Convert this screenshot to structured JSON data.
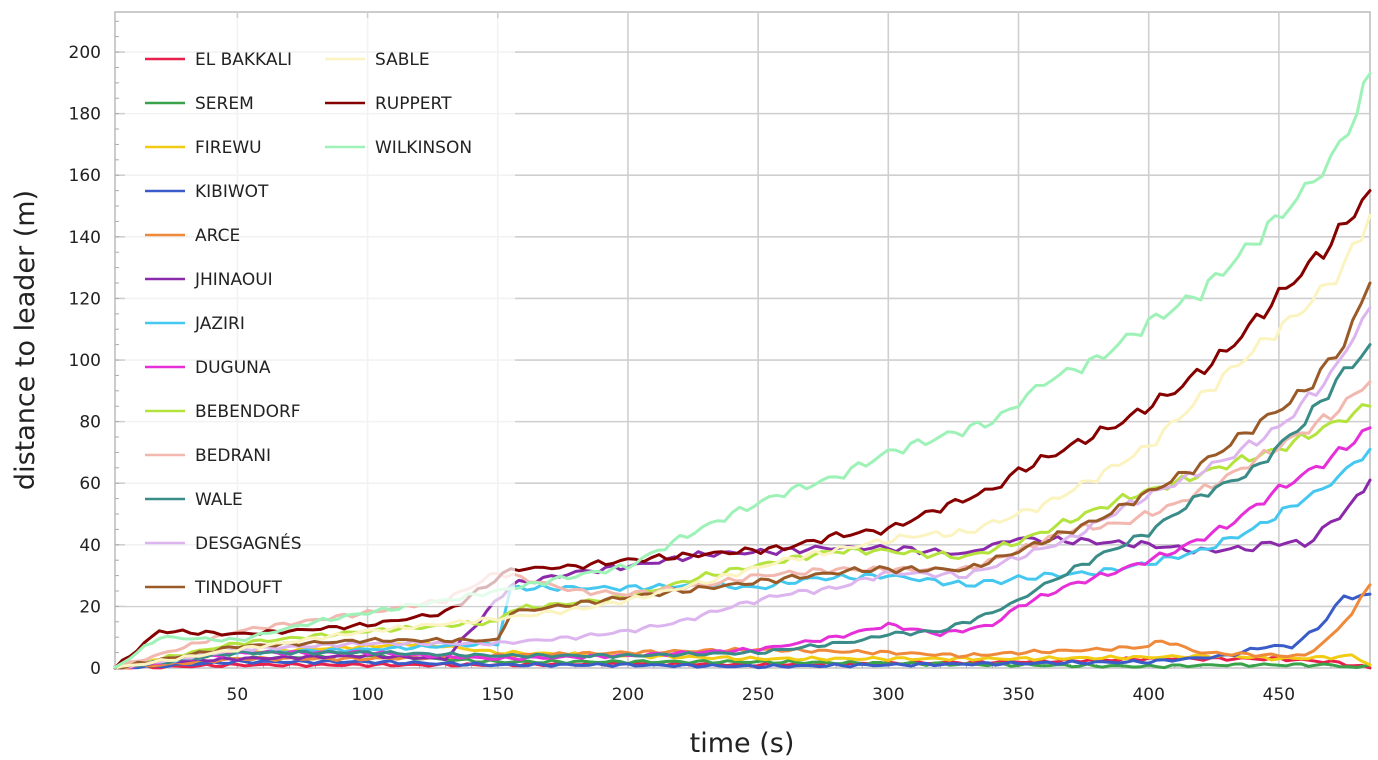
{
  "chart_data": {
    "type": "line",
    "title": "",
    "xlabel": "time (s)",
    "ylabel": "distance to leader (m)",
    "xlim": [
      3,
      485
    ],
    "ylim": [
      0,
      213
    ],
    "x_ticks": [
      50,
      100,
      150,
      200,
      250,
      300,
      350,
      400,
      450
    ],
    "y_ticks": [
      0,
      20,
      40,
      60,
      80,
      100,
      120,
      140,
      160,
      180,
      200
    ],
    "grid": true,
    "legend_position": "top-left",
    "series": [
      {
        "name": "EL BAKKALI",
        "color": "#e8204c",
        "points": [
          [
            3,
            0
          ],
          [
            50,
            1
          ],
          [
            100,
            1
          ],
          [
            150,
            1
          ],
          [
            200,
            1.5
          ],
          [
            250,
            1
          ],
          [
            300,
            1.5
          ],
          [
            350,
            2
          ],
          [
            380,
            2.5
          ],
          [
            400,
            3
          ],
          [
            430,
            3
          ],
          [
            450,
            3
          ],
          [
            470,
            2
          ],
          [
            485,
            0
          ]
        ]
      },
      {
        "name": "SEREM",
        "color": "#3aa24a",
        "points": [
          [
            3,
            0
          ],
          [
            50,
            3
          ],
          [
            100,
            4
          ],
          [
            150,
            2
          ],
          [
            200,
            2
          ],
          [
            250,
            2
          ],
          [
            300,
            1.5
          ],
          [
            350,
            1
          ],
          [
            400,
            0.5
          ],
          [
            430,
            1
          ],
          [
            450,
            1
          ],
          [
            470,
            1
          ],
          [
            480,
            0
          ],
          [
            485,
            1
          ]
        ]
      },
      {
        "name": "FIREWU",
        "color": "#f2cb13",
        "points": [
          [
            3,
            1
          ],
          [
            50,
            5
          ],
          [
            100,
            7
          ],
          [
            120,
            8
          ],
          [
            150,
            5
          ],
          [
            200,
            4
          ],
          [
            250,
            3
          ],
          [
            300,
            3
          ],
          [
            350,
            3
          ],
          [
            400,
            3.5
          ],
          [
            430,
            4
          ],
          [
            450,
            3
          ],
          [
            470,
            3.5
          ],
          [
            478,
            4
          ],
          [
            485,
            1
          ]
        ]
      },
      {
        "name": "KIBIWOT",
        "color": "#3a5cc8",
        "points": [
          [
            3,
            0
          ],
          [
            50,
            2
          ],
          [
            100,
            2
          ],
          [
            150,
            1
          ],
          [
            200,
            1
          ],
          [
            250,
            0.5
          ],
          [
            300,
            1
          ],
          [
            350,
            1.5
          ],
          [
            400,
            2
          ],
          [
            430,
            4
          ],
          [
            445,
            7
          ],
          [
            455,
            7
          ],
          [
            465,
            13
          ],
          [
            475,
            23
          ],
          [
            485,
            24
          ]
        ]
      },
      {
        "name": "ARCE",
        "color": "#ef8a3a",
        "points": [
          [
            3,
            0
          ],
          [
            50,
            3
          ],
          [
            100,
            3
          ],
          [
            150,
            4
          ],
          [
            200,
            5
          ],
          [
            250,
            6
          ],
          [
            300,
            5
          ],
          [
            330,
            4
          ],
          [
            350,
            5
          ],
          [
            380,
            6
          ],
          [
            400,
            7
          ],
          [
            405,
            9
          ],
          [
            420,
            5
          ],
          [
            450,
            4
          ],
          [
            460,
            4
          ],
          [
            470,
            10
          ],
          [
            478,
            18
          ],
          [
            485,
            27
          ]
        ]
      },
      {
        "name": "JHINAOUI",
        "color": "#8a2aaa",
        "points": [
          [
            3,
            0
          ],
          [
            20,
            2
          ],
          [
            50,
            3
          ],
          [
            100,
            4
          ],
          [
            130,
            3
          ],
          [
            155,
            27
          ],
          [
            180,
            31
          ],
          [
            200,
            33
          ],
          [
            230,
            37
          ],
          [
            260,
            38
          ],
          [
            275,
            39
          ],
          [
            300,
            39
          ],
          [
            330,
            37
          ],
          [
            340,
            40
          ],
          [
            350,
            42
          ],
          [
            380,
            41
          ],
          [
            400,
            40
          ],
          [
            420,
            38
          ],
          [
            440,
            39
          ],
          [
            450,
            41
          ],
          [
            460,
            40
          ],
          [
            470,
            47
          ],
          [
            480,
            55
          ],
          [
            485,
            61
          ]
        ]
      },
      {
        "name": "JAZIRI",
        "color": "#45c8ef",
        "points": [
          [
            3,
            0
          ],
          [
            50,
            5
          ],
          [
            100,
            6
          ],
          [
            150,
            8
          ],
          [
            155,
            26
          ],
          [
            200,
            26
          ],
          [
            230,
            27
          ],
          [
            250,
            26
          ],
          [
            270,
            29
          ],
          [
            300,
            30
          ],
          [
            330,
            27
          ],
          [
            340,
            28
          ],
          [
            350,
            29
          ],
          [
            360,
            30
          ],
          [
            380,
            31
          ],
          [
            400,
            34
          ],
          [
            420,
            38
          ],
          [
            440,
            45
          ],
          [
            460,
            55
          ],
          [
            470,
            60
          ],
          [
            485,
            71
          ]
        ]
      },
      {
        "name": "DUGUNA",
        "color": "#e62fd8",
        "points": [
          [
            3,
            0
          ],
          [
            50,
            5
          ],
          [
            100,
            5
          ],
          [
            150,
            3
          ],
          [
            200,
            4
          ],
          [
            250,
            6
          ],
          [
            280,
            10
          ],
          [
            300,
            14
          ],
          [
            320,
            11
          ],
          [
            340,
            14
          ],
          [
            350,
            20
          ],
          [
            370,
            27
          ],
          [
            390,
            32
          ],
          [
            410,
            38
          ],
          [
            430,
            46
          ],
          [
            450,
            58
          ],
          [
            470,
            68
          ],
          [
            485,
            78
          ]
        ]
      },
      {
        "name": "BEBENDORF",
        "color": "#b4e33d",
        "points": [
          [
            3,
            0
          ],
          [
            50,
            8
          ],
          [
            100,
            12
          ],
          [
            150,
            15
          ],
          [
            155,
            19
          ],
          [
            200,
            23
          ],
          [
            230,
            30
          ],
          [
            260,
            35
          ],
          [
            280,
            38
          ],
          [
            300,
            38
          ],
          [
            330,
            36
          ],
          [
            350,
            41
          ],
          [
            370,
            48
          ],
          [
            390,
            55
          ],
          [
            410,
            60
          ],
          [
            430,
            66
          ],
          [
            450,
            71
          ],
          [
            470,
            79
          ],
          [
            485,
            85
          ]
        ]
      },
      {
        "name": "BEDRANI",
        "color": "#f2b8b0",
        "points": [
          [
            3,
            0
          ],
          [
            50,
            12
          ],
          [
            100,
            18
          ],
          [
            130,
            22
          ],
          [
            150,
            31
          ],
          [
            180,
            25
          ],
          [
            200,
            24
          ],
          [
            230,
            27
          ],
          [
            250,
            30
          ],
          [
            280,
            32
          ],
          [
            300,
            32
          ],
          [
            330,
            32
          ],
          [
            350,
            38
          ],
          [
            370,
            45
          ],
          [
            390,
            47
          ],
          [
            410,
            53
          ],
          [
            430,
            62
          ],
          [
            450,
            72
          ],
          [
            470,
            82
          ],
          [
            485,
            93
          ]
        ]
      },
      {
        "name": "WALE",
        "color": "#3a8c88",
        "points": [
          [
            3,
            0
          ],
          [
            50,
            5
          ],
          [
            100,
            5
          ],
          [
            150,
            4
          ],
          [
            200,
            4
          ],
          [
            250,
            5
          ],
          [
            270,
            7
          ],
          [
            290,
            9
          ],
          [
            300,
            11
          ],
          [
            320,
            12
          ],
          [
            340,
            18
          ],
          [
            350,
            22
          ],
          [
            360,
            27
          ],
          [
            380,
            36
          ],
          [
            400,
            44
          ],
          [
            420,
            56
          ],
          [
            440,
            64
          ],
          [
            460,
            80
          ],
          [
            475,
            96
          ],
          [
            485,
            105
          ]
        ]
      },
      {
        "name": "DESGAGNÉS",
        "color": "#dcb5ee",
        "points": [
          [
            3,
            0
          ],
          [
            50,
            6
          ],
          [
            100,
            8
          ],
          [
            150,
            8
          ],
          [
            180,
            10
          ],
          [
            200,
            12
          ],
          [
            220,
            15
          ],
          [
            240,
            20
          ],
          [
            260,
            24
          ],
          [
            280,
            26
          ],
          [
            300,
            31
          ],
          [
            330,
            30
          ],
          [
            350,
            36
          ],
          [
            370,
            42
          ],
          [
            390,
            52
          ],
          [
            410,
            60
          ],
          [
            430,
            68
          ],
          [
            450,
            78
          ],
          [
            470,
            95
          ],
          [
            485,
            117
          ]
        ]
      },
      {
        "name": "TINDOUFT",
        "color": "#9a5a28",
        "points": [
          [
            3,
            0
          ],
          [
            50,
            7
          ],
          [
            100,
            9
          ],
          [
            150,
            9
          ],
          [
            155,
            18
          ],
          [
            200,
            23
          ],
          [
            230,
            26
          ],
          [
            260,
            29
          ],
          [
            290,
            32
          ],
          [
            300,
            32
          ],
          [
            330,
            32
          ],
          [
            350,
            38
          ],
          [
            380,
            48
          ],
          [
            400,
            57
          ],
          [
            420,
            66
          ],
          [
            440,
            78
          ],
          [
            460,
            90
          ],
          [
            475,
            105
          ],
          [
            485,
            125
          ]
        ]
      },
      {
        "name": "SABLE",
        "color": "#fbf3c0",
        "points": [
          [
            3,
            0
          ],
          [
            50,
            6
          ],
          [
            100,
            12
          ],
          [
            150,
            16
          ],
          [
            180,
            19
          ],
          [
            200,
            22
          ],
          [
            230,
            28
          ],
          [
            260,
            35
          ],
          [
            290,
            40
          ],
          [
            310,
            43
          ],
          [
            330,
            44
          ],
          [
            340,
            47
          ],
          [
            360,
            53
          ],
          [
            380,
            62
          ],
          [
            400,
            72
          ],
          [
            420,
            88
          ],
          [
            440,
            103
          ],
          [
            460,
            117
          ],
          [
            475,
            130
          ],
          [
            485,
            147
          ]
        ]
      },
      {
        "name": "RUPPERT",
        "color": "#860000",
        "points": [
          [
            3,
            0
          ],
          [
            20,
            12
          ],
          [
            50,
            11
          ],
          [
            70,
            12
          ],
          [
            100,
            14
          ],
          [
            130,
            18
          ],
          [
            155,
            32
          ],
          [
            180,
            33
          ],
          [
            200,
            35
          ],
          [
            230,
            37
          ],
          [
            260,
            39
          ],
          [
            280,
            43
          ],
          [
            300,
            45
          ],
          [
            320,
            52
          ],
          [
            340,
            58
          ],
          [
            350,
            64
          ],
          [
            370,
            72
          ],
          [
            390,
            80
          ],
          [
            410,
            90
          ],
          [
            430,
            103
          ],
          [
            450,
            121
          ],
          [
            470,
            138
          ],
          [
            485,
            155
          ]
        ]
      },
      {
        "name": "WILKINSON",
        "color": "#9ef2b8",
        "points": [
          [
            3,
            0
          ],
          [
            20,
            10
          ],
          [
            50,
            9
          ],
          [
            80,
            15
          ],
          [
            100,
            18
          ],
          [
            130,
            22
          ],
          [
            150,
            25
          ],
          [
            180,
            30
          ],
          [
            200,
            33
          ],
          [
            220,
            42
          ],
          [
            240,
            50
          ],
          [
            260,
            57
          ],
          [
            280,
            62
          ],
          [
            300,
            70
          ],
          [
            320,
            75
          ],
          [
            340,
            80
          ],
          [
            350,
            86
          ],
          [
            360,
            93
          ],
          [
            380,
            100
          ],
          [
            400,
            112
          ],
          [
            420,
            122
          ],
          [
            440,
            138
          ],
          [
            460,
            155
          ],
          [
            470,
            165
          ],
          [
            480,
            180
          ],
          [
            485,
            193
          ]
        ]
      }
    ]
  }
}
